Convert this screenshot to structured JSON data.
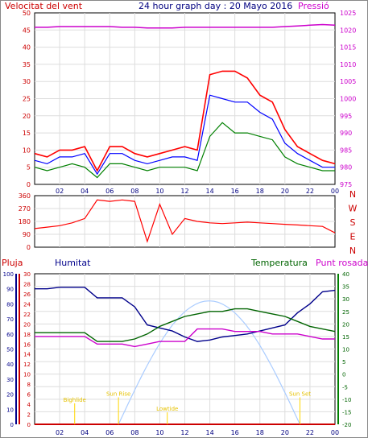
{
  "header": {
    "left_label": "Velocitat del vent",
    "title": "24 hour graph day : 20 Mayo 2016",
    "right_label": "Pressió"
  },
  "colors": {
    "wind": "#ff0000",
    "gust": "#ff0000",
    "avg": "#0000ff",
    "green": "#008000",
    "pressure": "#cc00cc",
    "rain": "#cc0000",
    "humidity": "#00008b",
    "temperature": "#006400",
    "dewpoint": "#cc00cc",
    "solar": "#aaccff",
    "astro": "#ffd700"
  },
  "chart_data": [
    {
      "type": "line",
      "name": "wind_pressure",
      "x_ticks": [
        "02",
        "04",
        "06",
        "08",
        "10",
        "12",
        "14",
        "16",
        "18",
        "20",
        "22",
        "00"
      ],
      "y_left_ticks": [
        "0",
        "5",
        "10",
        "15",
        "20",
        "25",
        "30",
        "35",
        "40",
        "45",
        "50"
      ],
      "y_right_ticks": [
        "975",
        "980",
        "985",
        "990",
        "995",
        "1000",
        "1005",
        "1010",
        "1015",
        "1020",
        "1025"
      ],
      "ylim_left": [
        0,
        50
      ],
      "ylim_right": [
        975,
        1025
      ],
      "x_hours": [
        0,
        1,
        2,
        3,
        4,
        5,
        6,
        7,
        8,
        9,
        10,
        11,
        12,
        13,
        14,
        15,
        16,
        17,
        18,
        19,
        20,
        21,
        22,
        23,
        24
      ],
      "series": [
        {
          "key": "gust",
          "values": [
            9,
            8,
            10,
            10,
            11,
            4,
            11,
            11,
            9,
            8,
            9,
            10,
            11,
            10,
            32,
            33,
            33,
            31,
            26,
            24,
            16,
            11,
            9,
            7,
            6
          ]
        },
        {
          "key": "avg",
          "values": [
            7,
            6,
            8,
            8,
            9,
            3,
            9,
            9,
            7,
            6,
            7,
            8,
            8,
            7,
            26,
            25,
            24,
            24,
            21,
            19,
            12,
            9,
            7,
            5,
            5
          ]
        },
        {
          "key": "green",
          "values": [
            5,
            4,
            5,
            6,
            5,
            2,
            6,
            6,
            5,
            4,
            5,
            5,
            5,
            4,
            14,
            18,
            15,
            15,
            14,
            13,
            8,
            6,
            5,
            4,
            4
          ]
        },
        {
          "key": "pressure",
          "values": [
            1020.8,
            1020.8,
            1021,
            1021,
            1021,
            1021,
            1021,
            1020.8,
            1020.8,
            1020.6,
            1020.6,
            1020.6,
            1020.8,
            1020.8,
            1020.8,
            1020.8,
            1020.8,
            1020.8,
            1020.8,
            1020.8,
            1021,
            1021.2,
            1021.4,
            1021.6,
            1021.4
          ]
        }
      ]
    },
    {
      "type": "line",
      "name": "wind_direction",
      "y_left_ticks": [
        "0",
        "90",
        "180",
        "270",
        "360"
      ],
      "ylim": [
        0,
        360
      ],
      "compass": [
        "N",
        "W",
        "S",
        "E",
        "N"
      ],
      "x_hours": [
        0,
        1,
        2,
        3,
        4,
        5,
        6,
        7,
        8,
        9,
        10,
        11,
        12,
        13,
        14,
        15,
        16,
        17,
        18,
        19,
        20,
        21,
        22,
        23,
        24
      ],
      "series": [
        {
          "key": "direction",
          "values": [
            130,
            140,
            150,
            170,
            200,
            330,
            320,
            330,
            320,
            40,
            300,
            90,
            200,
            180,
            170,
            165,
            170,
            175,
            170,
            165,
            160,
            155,
            150,
            145,
            100
          ]
        }
      ]
    },
    {
      "type": "line",
      "name": "rain_humidity_temperature",
      "labels": {
        "rain": "Pluja",
        "humidity": "Humitat",
        "temperature": "Temperatura",
        "dewpoint": "Punt rosada"
      },
      "y_hum_ticks": [
        "0",
        "10",
        "20",
        "30",
        "40",
        "50",
        "60",
        "70",
        "80",
        "90",
        "100"
      ],
      "y_rain_ticks": [
        "0",
        "2",
        "4",
        "6",
        "8",
        "10",
        "12",
        "14",
        "16",
        "18",
        "20",
        "22",
        "24",
        "26",
        "28",
        "30"
      ],
      "y_temp_ticks": [
        "-20",
        "-15",
        "-10",
        "-5",
        "0",
        "5",
        "10",
        "15",
        "20",
        "25",
        "30",
        "35",
        "40"
      ],
      "ylim_humidity": [
        0,
        100
      ],
      "ylim_temperature": [
        -20,
        40
      ],
      "x_hours": [
        0,
        1,
        2,
        3,
        4,
        5,
        6,
        7,
        8,
        9,
        10,
        11,
        12,
        13,
        14,
        15,
        16,
        17,
        18,
        19,
        20,
        21,
        22,
        23,
        24
      ],
      "series": [
        {
          "key": "humidity",
          "values": [
            90,
            90,
            91,
            91,
            91,
            84,
            84,
            84,
            78,
            66,
            64,
            62,
            58,
            55,
            56,
            58,
            59,
            60,
            62,
            64,
            66,
            74,
            80,
            88,
            89
          ]
        },
        {
          "key": "temperature",
          "values": [
            16.5,
            16.5,
            16.5,
            16.5,
            16.5,
            13,
            13,
            13,
            14,
            16,
            19,
            21,
            23,
            24,
            25,
            25,
            26,
            26,
            25,
            24,
            23,
            21,
            19,
            18,
            17
          ]
        },
        {
          "key": "dewpoint",
          "values": [
            15,
            15,
            15,
            15,
            15,
            12,
            12,
            12,
            11,
            12,
            13,
            13,
            13,
            18,
            18,
            18,
            17,
            17,
            17,
            16,
            16,
            16,
            15,
            14,
            14
          ]
        },
        {
          "key": "rain",
          "values": [
            0,
            0,
            0,
            0,
            0,
            0,
            0,
            0,
            0,
            0,
            0,
            0,
            0,
            0,
            0,
            0,
            0,
            0,
            0,
            0,
            0,
            0,
            0,
            0,
            0
          ]
        }
      ],
      "solar_curve": {
        "start_hour": 6.7,
        "peak_hour": 14,
        "end_hour": 21.2,
        "peak_percent": 82
      },
      "astro_labels": [
        {
          "text": "Bighlide",
          "hour": 3.2,
          "level": 15
        },
        {
          "text": "Sun Rise",
          "hour": 6.7,
          "level": 19
        },
        {
          "text": "Lowtide",
          "hour": 10.6,
          "level": 9
        },
        {
          "text": "Sun Set",
          "hour": 21.2,
          "level": 19
        }
      ]
    }
  ]
}
